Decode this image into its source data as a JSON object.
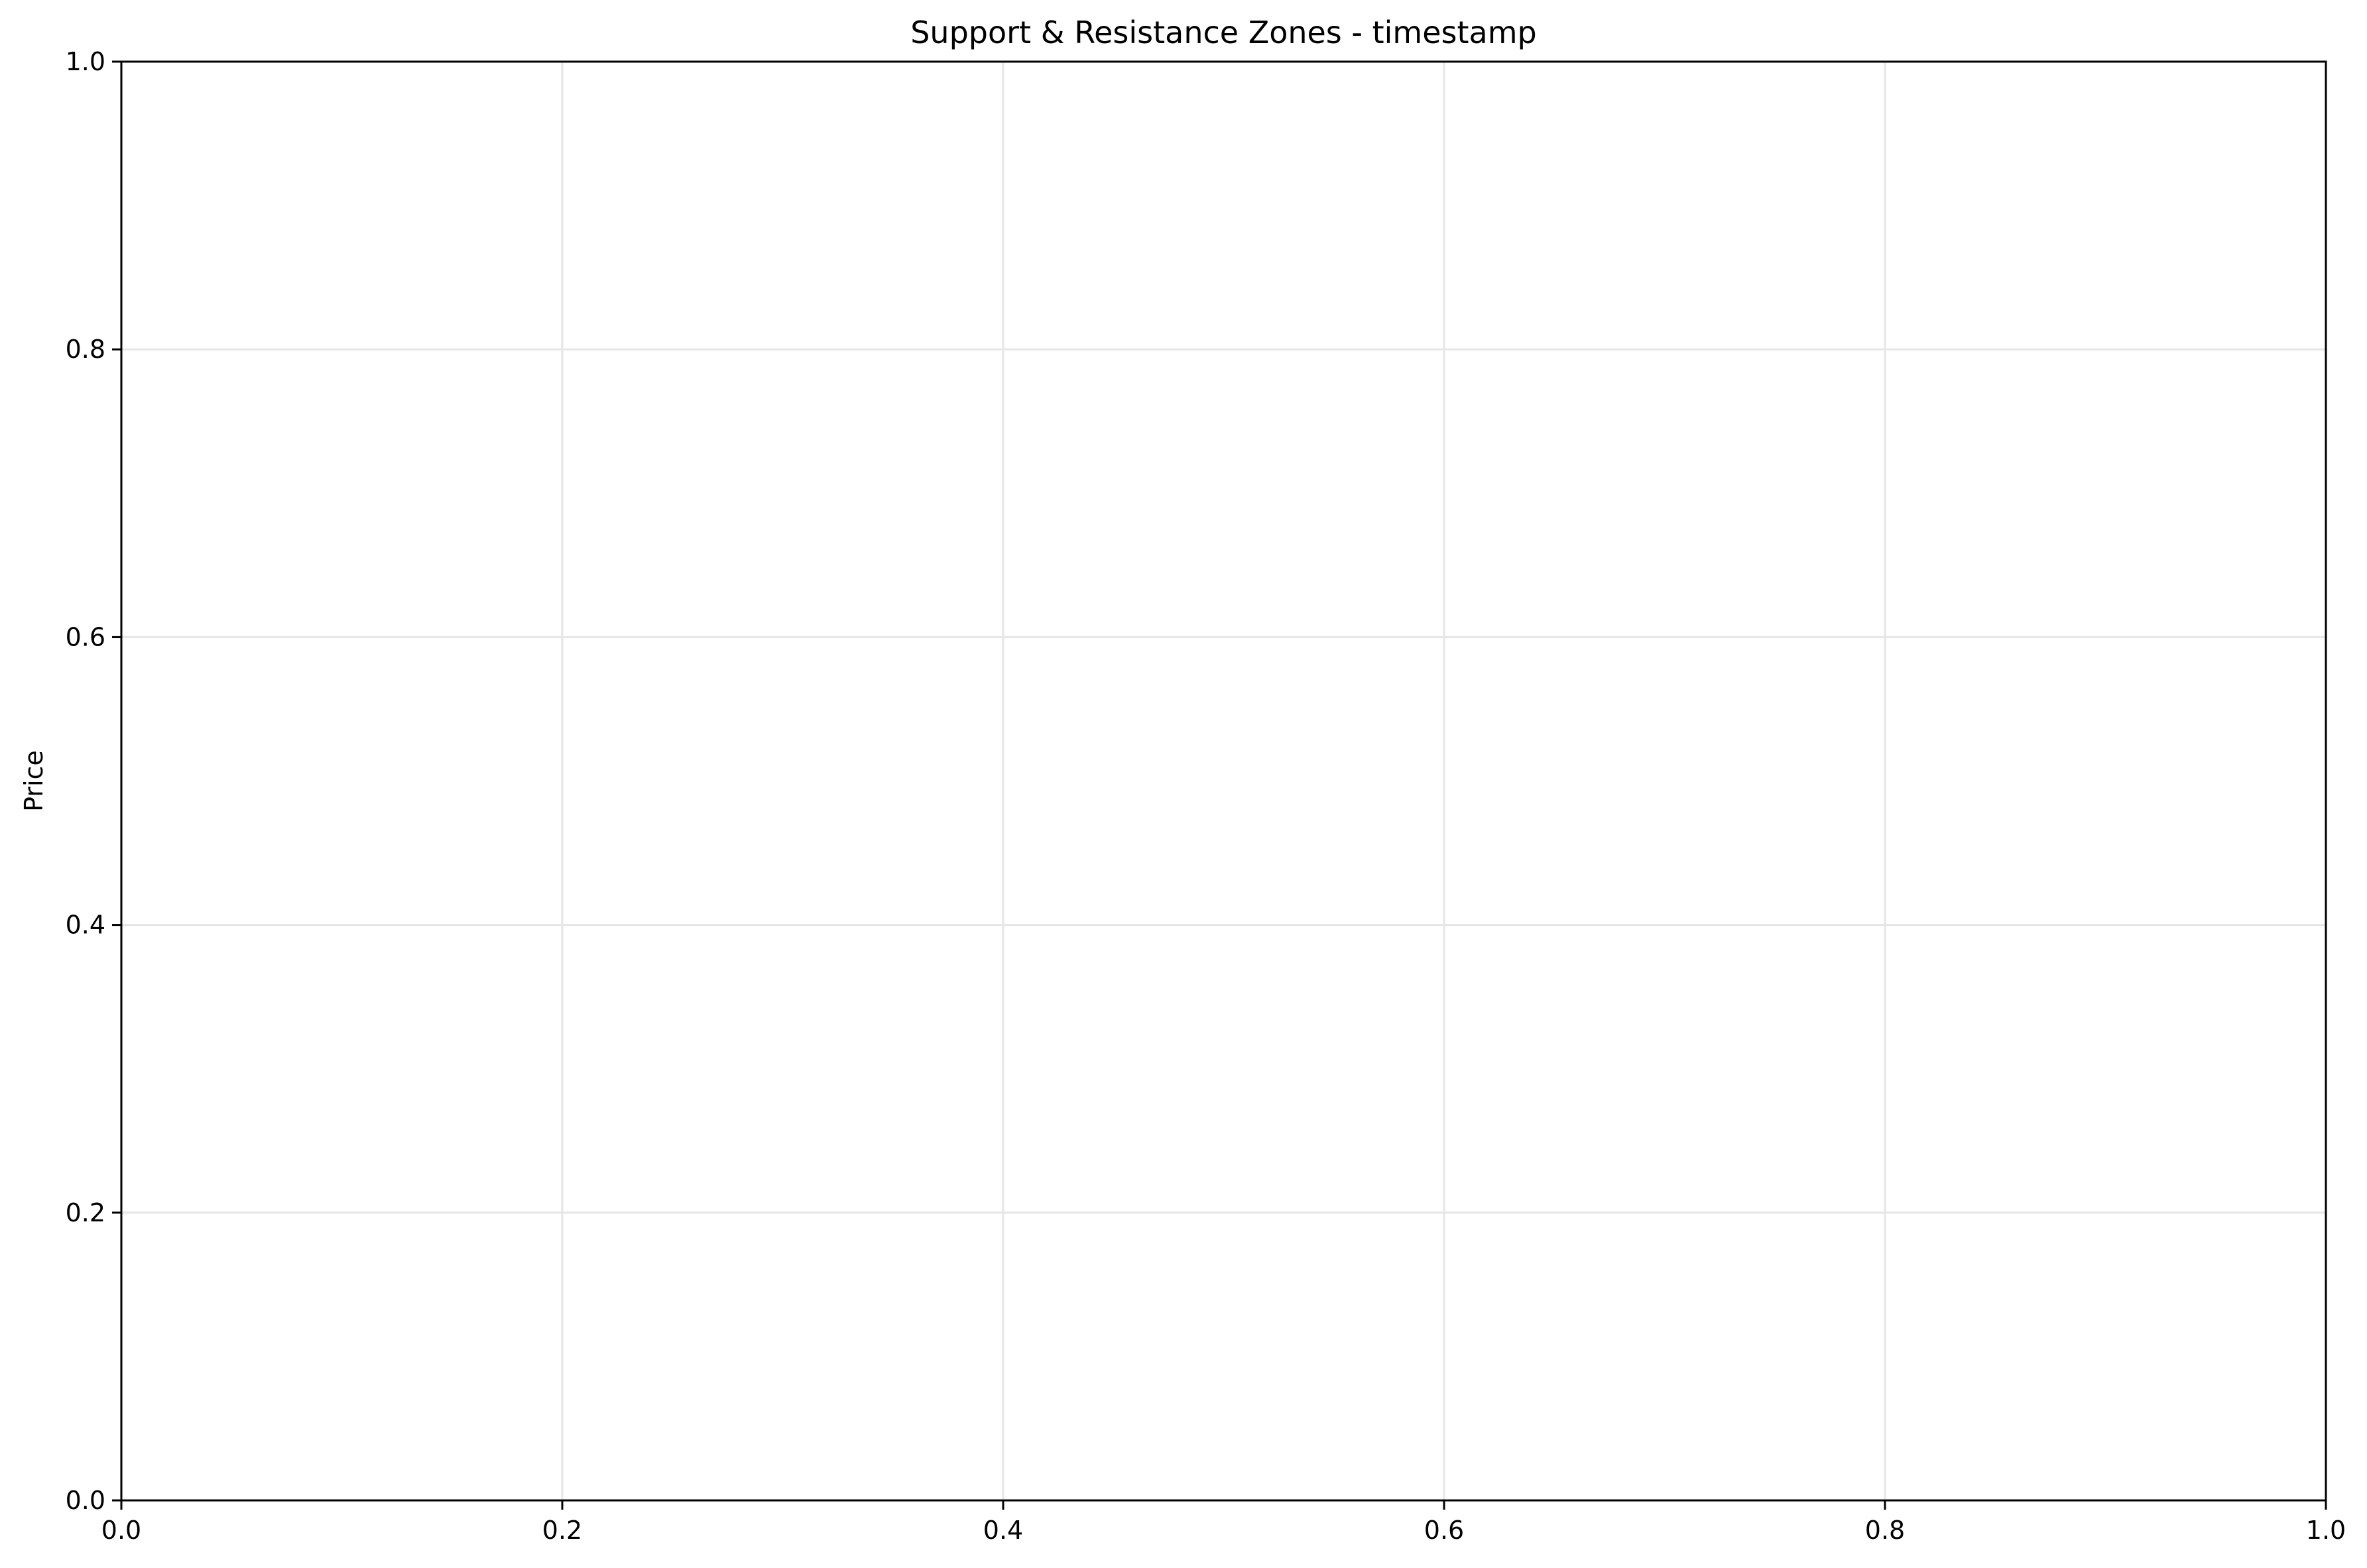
{
  "chart_data": {
    "type": "line",
    "title": "Support & Resistance Zones - timestamp",
    "xlabel": "",
    "ylabel": "Price",
    "xlim": [
      0.0,
      1.0
    ],
    "ylim": [
      0.0,
      1.0
    ],
    "x_ticks": [
      "0.0",
      "0.2",
      "0.4",
      "0.6",
      "0.8",
      "1.0"
    ],
    "y_ticks": [
      "0.0",
      "0.2",
      "0.4",
      "0.6",
      "0.8",
      "1.0"
    ],
    "x_tick_values": [
      0.0,
      0.2,
      0.4,
      0.6,
      0.8,
      1.0
    ],
    "y_tick_values": [
      0.0,
      0.2,
      0.4,
      0.6,
      0.8,
      1.0
    ],
    "grid": true,
    "series": [],
    "colors": {
      "background": "#ffffff",
      "axes": "#000000",
      "grid": "#e6e6e6"
    }
  }
}
